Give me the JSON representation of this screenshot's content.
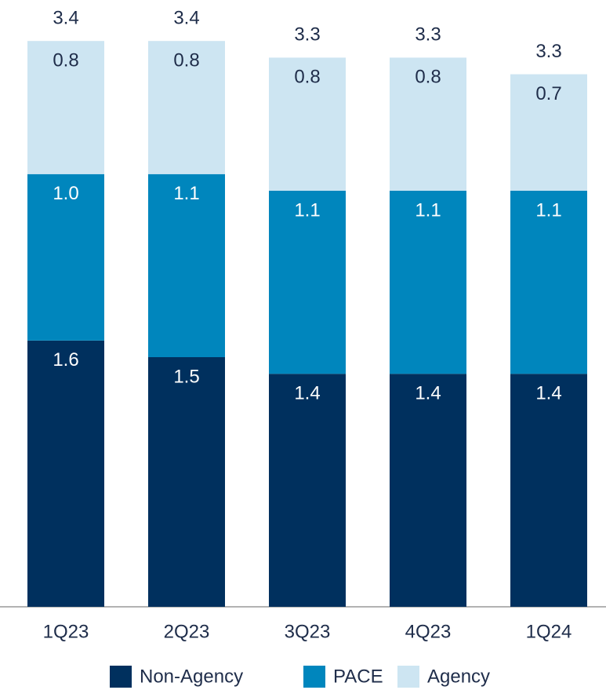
{
  "chart_data": {
    "type": "stacked_bar",
    "categories": [
      "1Q23",
      "2Q23",
      "3Q23",
      "4Q23",
      "1Q24"
    ],
    "series": [
      {
        "name": "Non-Agency",
        "color": "#00305e",
        "values": [
          1.6,
          1.5,
          1.4,
          1.4,
          1.4
        ],
        "value_labels": [
          "1.6",
          "1.5",
          "1.4",
          "1.4",
          "1.4"
        ]
      },
      {
        "name": "PACE",
        "color": "#0086bd",
        "values": [
          1.0,
          1.1,
          1.1,
          1.1,
          1.1
        ],
        "value_labels": [
          "1.0",
          "1.1",
          "1.1",
          "1.1",
          "1.1"
        ]
      },
      {
        "name": "Agency",
        "color": "#cde5f2",
        "values": [
          0.8,
          0.8,
          0.8,
          0.8,
          0.7
        ],
        "value_labels": [
          "0.8",
          "0.8",
          "0.8",
          "0.8",
          "0.7"
        ]
      }
    ],
    "totals": [
      3.4,
      3.4,
      3.3,
      3.3,
      3.3
    ],
    "legend": "bottom"
  }
}
